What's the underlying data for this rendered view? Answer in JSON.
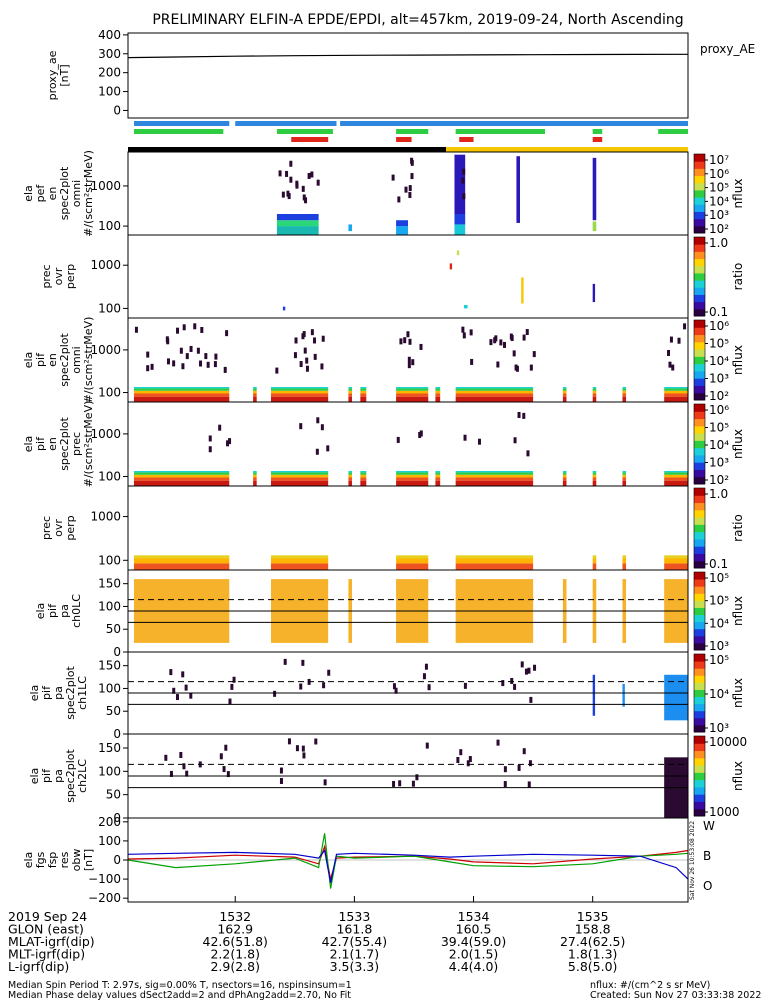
{
  "title": "PRELIMINARY ELFIN-A EPDE/EPDI, alt=457km, 2019-09-24, North Ascending",
  "time_axis": {
    "range": [
      1531.1,
      1535.8
    ],
    "ticks": [
      "1532",
      "1533",
      "1534",
      "1535"
    ]
  },
  "chart_data": [
    {
      "type": "line",
      "name": "proxy_ae",
      "ylabel": [
        "proxy_ae",
        "[nT]"
      ],
      "legend": "proxy_AE",
      "ylim": [
        -40,
        410
      ],
      "yticks": [
        "0",
        "100",
        "200",
        "300",
        "400"
      ],
      "x": [
        1531.1,
        1531.5,
        1532.0,
        1532.5,
        1533.0,
        1533.5,
        1534.0,
        1534.5,
        1535.0,
        1535.8
      ],
      "y": [
        280,
        283,
        287,
        290,
        292,
        293,
        294,
        295,
        296,
        297
      ],
      "color": "#000000"
    },
    {
      "type": "bar",
      "name": "orbit_flags",
      "rows": [
        {
          "color": "#2e86de",
          "segments": [
            [
              1531.15,
              1531.95
            ],
            [
              1532.0,
              1532.85
            ],
            [
              1532.88,
              1535.8
            ]
          ]
        },
        {
          "color": "#2ecc40",
          "segments": [
            [
              1531.15,
              1531.9
            ],
            [
              1532.35,
              1532.82
            ],
            [
              1533.35,
              1533.62
            ],
            [
              1533.85,
              1534.6
            ],
            [
              1535.0,
              1535.08
            ],
            [
              1535.55,
              1535.8
            ]
          ]
        },
        {
          "color": "#e0251b",
          "segments": [
            [
              1532.47,
              1532.78
            ],
            [
              1533.35,
              1533.48
            ],
            [
              1533.88,
              1534.0
            ],
            [
              1535.0,
              1535.08
            ]
          ]
        }
      ]
    },
    {
      "type": "heatmap",
      "name": "elx_pef_en_spec2plot_omni",
      "ylabel": [
        "ela",
        "pef",
        "en",
        "spec2plot",
        "omni",
        "#/(scm²strMeV)"
      ],
      "yscale": "log",
      "ylim": [
        60,
        7000
      ],
      "yticks": [
        "100",
        "1000"
      ],
      "status_bar": [
        {
          "from": 1531.1,
          "to": 1533.77,
          "color": "#000000"
        },
        {
          "from": 1533.77,
          "to": 1535.8,
          "color": "#f7c600"
        }
      ],
      "colorbar": {
        "label": "nflux",
        "scale": "log",
        "ticks": [
          "10²",
          "10³",
          "10⁴",
          "10⁵",
          "10⁶",
          "10⁷"
        ]
      },
      "blocks": [
        {
          "x": [
            1532.35,
            1532.7
          ],
          "y": [
            60,
            100
          ],
          "color": "#19b8b0"
        },
        {
          "x": [
            1532.35,
            1532.7
          ],
          "y": [
            100,
            140
          ],
          "color": "#2ad87a"
        },
        {
          "x": [
            1532.35,
            1532.7
          ],
          "y": [
            140,
            200
          ],
          "color": "#1c3fe0"
        },
        {
          "x": [
            1533.35,
            1533.45
          ],
          "y": [
            60,
            100
          ],
          "color": "#18a8f0"
        },
        {
          "x": [
            1533.35,
            1533.45
          ],
          "y": [
            100,
            140
          ],
          "color": "#1c3fe0"
        },
        {
          "x": [
            1533.84,
            1533.93
          ],
          "y": [
            60,
            110
          ],
          "color": "#18c8d8"
        },
        {
          "x": [
            1533.84,
            1533.93
          ],
          "y": [
            110,
            200
          ],
          "color": "#1c3fe0"
        },
        {
          "x": [
            1533.84,
            1533.93
          ],
          "y": [
            200,
            6000
          ],
          "color": "#2a18b8"
        },
        {
          "x": [
            1534.36,
            1534.39
          ],
          "y": [
            120,
            5500
          ],
          "color": "#2a18b8"
        },
        {
          "x": [
            1535.0,
            1535.03
          ],
          "y": [
            75,
            130
          ],
          "color": "#9bd84a"
        },
        {
          "x": [
            1535.0,
            1535.03
          ],
          "y": [
            140,
            5000
          ],
          "color": "#2a18b8"
        },
        {
          "x": [
            1532.95,
            1532.98
          ],
          "y": [
            75,
            110
          ],
          "color": "#18a8f0"
        }
      ]
    },
    {
      "type": "heatmap",
      "name": "prec_ovr_perp_pef",
      "ylabel": [
        "prec",
        "ovr",
        "perp"
      ],
      "yscale": "log",
      "ylim": [
        60,
        5000
      ],
      "yticks": [
        "100",
        "1000"
      ],
      "colorbar": {
        "label": "ratio",
        "scale": "log",
        "ticks": [
          "0.1",
          "1.0"
        ]
      },
      "blocks": [
        {
          "x": [
            1533.8,
            1533.82
          ],
          "y": [
            800,
            1100
          ],
          "color": "#e0251b"
        },
        {
          "x": [
            1533.86,
            1533.88
          ],
          "y": [
            1700,
            2200
          ],
          "color": "#c8e050"
        },
        {
          "x": [
            1533.92,
            1533.95
          ],
          "y": [
            100,
            120
          ],
          "color": "#1cd0d8"
        },
        {
          "x": [
            1534.4,
            1534.42
          ],
          "y": [
            130,
            520
          ],
          "color": "#f7c600"
        },
        {
          "x": [
            1535.0,
            1535.02
          ],
          "y": [
            140,
            370
          ],
          "color": "#2a18b8"
        },
        {
          "x": [
            1532.4,
            1532.42
          ],
          "y": [
            90,
            110
          ],
          "color": "#1c3fe0"
        }
      ]
    },
    {
      "type": "heatmap",
      "name": "elx_pif_en_spec2plot_omni",
      "ylabel": [
        "ela",
        "pif",
        "en",
        "spec2plot",
        "omni",
        "#/(scm²strMeV)"
      ],
      "yscale": "log",
      "ylim": [
        60,
        5600
      ],
      "yticks": [
        "100",
        "1000"
      ],
      "colorbar": {
        "label": "nflux",
        "scale": "log",
        "ticks": [
          "10²",
          "10³",
          "10⁴",
          "10⁵",
          "10⁶"
        ]
      },
      "bands": [
        {
          "y": [
            60,
            80
          ],
          "color": "#c81a10"
        },
        {
          "y": [
            80,
            95
          ],
          "color": "#ef5420"
        },
        {
          "y": [
            95,
            110
          ],
          "color": "#ffb400"
        },
        {
          "y": [
            110,
            125
          ],
          "color": "#2ecc40"
        },
        {
          "y": [
            125,
            135
          ],
          "color": "#1cd0d8"
        }
      ],
      "segments": [
        [
          1531.15,
          1531.95
        ],
        [
          1532.15,
          1532.18
        ],
        [
          1532.3,
          1532.78
        ],
        [
          1532.95,
          1532.98
        ],
        [
          1533.05,
          1533.1
        ],
        [
          1533.35,
          1533.62
        ],
        [
          1533.68,
          1533.72
        ],
        [
          1533.85,
          1534.5
        ],
        [
          1534.75,
          1534.78
        ],
        [
          1535.0,
          1535.03
        ],
        [
          1535.25,
          1535.28
        ],
        [
          1535.6,
          1535.8
        ]
      ]
    },
    {
      "type": "heatmap",
      "name": "elx_pif_en_spec2plot_prec",
      "ylabel": [
        "ela",
        "pif",
        "en",
        "spec2plot",
        "prec",
        "#/(scm²strMeV)"
      ],
      "yscale": "log",
      "ylim": [
        60,
        5600
      ],
      "yticks": [
        "100",
        "1000"
      ],
      "colorbar": {
        "label": "nflux",
        "scale": "log",
        "ticks": [
          "10²",
          "10³",
          "10⁴",
          "10⁵",
          "10⁶"
        ]
      },
      "bands": [
        {
          "y": [
            60,
            80
          ],
          "color": "#c81a10"
        },
        {
          "y": [
            80,
            95
          ],
          "color": "#ef5420"
        },
        {
          "y": [
            95,
            110
          ],
          "color": "#ffb400"
        },
        {
          "y": [
            110,
            125
          ],
          "color": "#2ecc40"
        },
        {
          "y": [
            125,
            135
          ],
          "color": "#1cd0d8"
        }
      ],
      "segments": [
        [
          1531.15,
          1531.95
        ],
        [
          1532.15,
          1532.18
        ],
        [
          1532.3,
          1532.78
        ],
        [
          1532.95,
          1532.98
        ],
        [
          1533.05,
          1533.1
        ],
        [
          1533.35,
          1533.62
        ],
        [
          1533.68,
          1533.72
        ],
        [
          1533.85,
          1534.5
        ],
        [
          1534.75,
          1534.78
        ],
        [
          1535.0,
          1535.03
        ],
        [
          1535.25,
          1535.28
        ],
        [
          1535.6,
          1535.8
        ]
      ]
    },
    {
      "type": "heatmap",
      "name": "prec_ovr_perp_pif",
      "ylabel": [
        "prec",
        "ovr",
        "perp"
      ],
      "yscale": "log",
      "ylim": [
        60,
        5000
      ],
      "yticks": [
        "100",
        "1000"
      ],
      "colorbar": {
        "label": "ratio",
        "scale": "log",
        "ticks": [
          "0.1",
          "1.0"
        ]
      },
      "bands": [
        {
          "y": [
            60,
            85
          ],
          "color": "#ef5420"
        },
        {
          "y": [
            85,
            110
          ],
          "color": "#ffb400"
        },
        {
          "y": [
            110,
            130
          ],
          "color": "#e8d020"
        }
      ],
      "segments": [
        [
          1531.15,
          1531.95
        ],
        [
          1532.3,
          1532.78
        ],
        [
          1533.35,
          1533.62
        ],
        [
          1533.85,
          1534.5
        ],
        [
          1535.0,
          1535.03
        ],
        [
          1535.25,
          1535.28
        ],
        [
          1535.6,
          1535.8
        ]
      ]
    },
    {
      "type": "heatmap",
      "name": "elx_pif_pa_ch0LC",
      "ylabel": [
        "ela",
        "pif",
        "pa",
        "ch0LC"
      ],
      "ylim": [
        0,
        180
      ],
      "yticks": [
        "0",
        "50",
        "100",
        "150"
      ],
      "colorbar": {
        "label": "nflux",
        "scale": "log",
        "ticks": [
          "10³",
          "10⁴",
          "10⁵",
          "10⁵"
        ]
      },
      "fill_color": "#f5b22a",
      "fill_range": [
        20,
        160
      ],
      "segments": [
        [
          1531.15,
          1531.95
        ],
        [
          1532.3,
          1532.78
        ],
        [
          1532.95,
          1532.98
        ],
        [
          1533.35,
          1533.62
        ],
        [
          1533.85,
          1534.5
        ],
        [
          1534.75,
          1534.78
        ],
        [
          1535.0,
          1535.03
        ],
        [
          1535.25,
          1535.28
        ],
        [
          1535.6,
          1535.8
        ]
      ],
      "reference_lines": [
        {
          "y": 115,
          "style": "dashed"
        },
        {
          "y": 90,
          "style": "solid"
        },
        {
          "y": 65,
          "style": "solid"
        }
      ]
    },
    {
      "type": "heatmap",
      "name": "elx_pif_pa_spec2plot_ch1LC",
      "ylabel": [
        "ela",
        "pif",
        "pa",
        "spec2plot",
        "ch1LC"
      ],
      "ylim": [
        0,
        180
      ],
      "yticks": [
        "0",
        "50",
        "100",
        "150"
      ],
      "colorbar": {
        "label": "nflux",
        "scale": "log",
        "ticks": [
          "10³",
          "10⁴",
          "10⁵"
        ]
      },
      "reference_lines": [
        {
          "y": 115,
          "style": "dashed"
        },
        {
          "y": 90,
          "style": "solid"
        },
        {
          "y": 65,
          "style": "solid"
        }
      ],
      "blocks": [
        {
          "x": [
            1535.6,
            1535.8
          ],
          "y": [
            30,
            130
          ],
          "color": "#1c8ef0"
        },
        {
          "x": [
            1535.0,
            1535.02
          ],
          "y": [
            40,
            130
          ],
          "color": "#1c3fe0"
        },
        {
          "x": [
            1535.25,
            1535.27
          ],
          "y": [
            60,
            110
          ],
          "color": "#1c8ef0"
        }
      ]
    },
    {
      "type": "heatmap",
      "name": "elx_pif_pa_spec2plot_ch2LC",
      "ylabel": [
        "ela",
        "pif",
        "pa",
        "spec2plot",
        "ch2LC"
      ],
      "ylim": [
        0,
        180
      ],
      "yticks": [
        "0",
        "50",
        "100",
        "150"
      ],
      "colorbar": {
        "label": "nflux",
        "scale": "log",
        "ticks": [
          "1000",
          "10000"
        ]
      },
      "reference_lines": [
        {
          "y": 115,
          "style": "dashed"
        },
        {
          "y": 90,
          "style": "solid"
        },
        {
          "y": 65,
          "style": "solid"
        }
      ],
      "blocks": [
        {
          "x": [
            1535.6,
            1535.8
          ],
          "y": [
            0,
            130
          ],
          "color": "#2a0a30"
        }
      ]
    },
    {
      "type": "line",
      "name": "elx_fgs_fsp_res_obw",
      "ylabel": [
        "ela",
        "fgs",
        "fsp",
        "res",
        "obw",
        "[nT]"
      ],
      "ylim": [
        -220,
        220
      ],
      "yticks": [
        "−200",
        "−100",
        "0",
        "100",
        "200"
      ],
      "series": [
        {
          "name": "W",
          "color": "#cc0000",
          "x": [
            1531.1,
            1531.5,
            1532.0,
            1532.5,
            1532.7,
            1532.75,
            1532.8,
            1532.85,
            1533.0,
            1533.5,
            1533.8,
            1534.0,
            1534.5,
            1535.0,
            1535.4,
            1535.7,
            1535.8
          ],
          "y": [
            5,
            10,
            25,
            15,
            -20,
            70,
            -100,
            10,
            15,
            20,
            5,
            -10,
            -20,
            5,
            20,
            40,
            50
          ]
        },
        {
          "name": "B",
          "color": "#00a000",
          "x": [
            1531.1,
            1531.5,
            1532.0,
            1532.5,
            1532.7,
            1532.75,
            1532.8,
            1532.85,
            1533.0,
            1533.5,
            1533.8,
            1534.0,
            1534.5,
            1535.0,
            1535.4,
            1535.7,
            1535.8
          ],
          "y": [
            0,
            -40,
            -20,
            10,
            -40,
            140,
            -150,
            20,
            10,
            20,
            -10,
            -30,
            -35,
            -20,
            20,
            30,
            35
          ]
        },
        {
          "name": "O",
          "color": "#0000cc",
          "x": [
            1531.1,
            1531.5,
            1532.0,
            1532.5,
            1532.7,
            1532.75,
            1532.8,
            1532.85,
            1533.0,
            1533.5,
            1533.8,
            1534.0,
            1534.5,
            1535.0,
            1535.4,
            1535.7,
            1535.8
          ],
          "y": [
            30,
            35,
            40,
            30,
            10,
            50,
            -120,
            30,
            35,
            25,
            15,
            20,
            30,
            25,
            20,
            -40,
            -100
          ]
        }
      ]
    }
  ],
  "info_rows": [
    {
      "label": "2019 Sep 24",
      "values": [
        "1532",
        "1533",
        "1534",
        "1535"
      ]
    },
    {
      "label": "GLON (east)",
      "values": [
        "162.9",
        "161.8",
        "160.5",
        "158.8"
      ]
    },
    {
      "label": "MLAT-igrf(dip)",
      "values": [
        "42.6(51.8)",
        "42.7(55.4)",
        "39.4(59.0)",
        "27.4(62.5)"
      ]
    },
    {
      "label": "MLT-igrf(dip)",
      "values": [
        "2.2(1.8)",
        "2.1(1.7)",
        "2.0(1.5)",
        "1.8(1.3)"
      ]
    },
    {
      "label": "L-igrf(dip)",
      "values": [
        "2.9(2.8)",
        "3.5(3.3)",
        "4.4(4.0)",
        "5.8(5.0)"
      ]
    }
  ],
  "footer": {
    "left1": "Median Spin Period T: 2.97s, sig=0.00% T, nsectors=16, nspinsinsum=1",
    "left2": "Median Phase delay values dSect2add=2 and dPhAng2add=2.70, No Fit",
    "right1": "nflux: #/(cm^2 s sr MeV)",
    "right2": "Created: Sun Nov 27 03:33:38 2022",
    "vertical": "Sat Nov 26 10:53:08 2022"
  }
}
